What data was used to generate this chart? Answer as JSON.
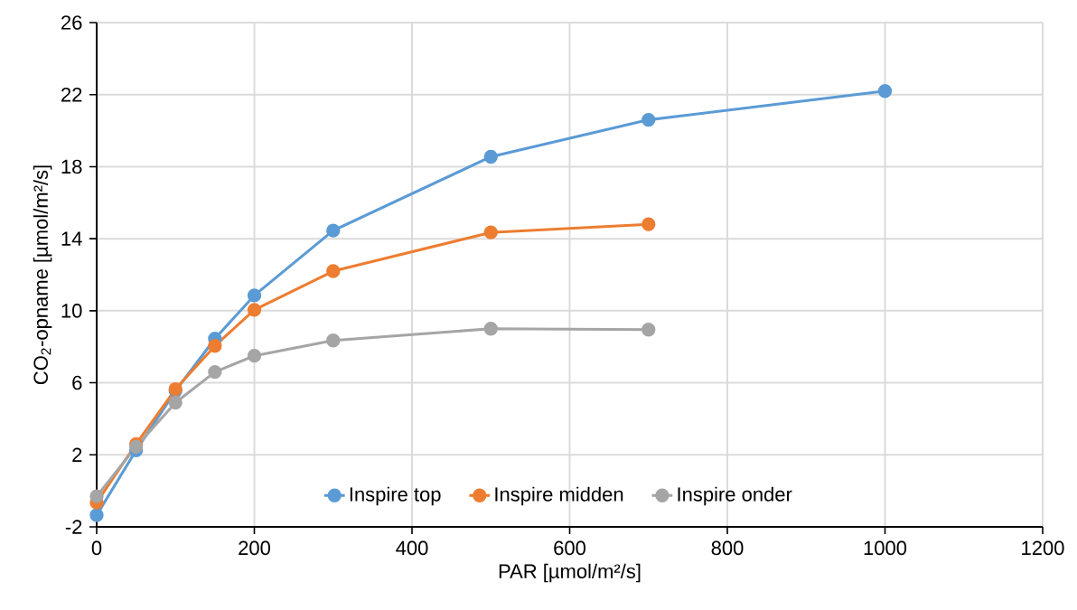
{
  "chart_data": {
    "type": "line",
    "xlabel": "PAR [µmol/m²/s]",
    "ylabel": "CO$_{2}$-opname [µmol/m²/s]",
    "xlim": [
      0,
      1200
    ],
    "xticks": [
      0,
      200,
      400,
      600,
      800,
      1000,
      1200
    ],
    "ylim": [
      -2,
      26
    ],
    "yticks": [
      -2,
      2,
      6,
      10,
      14,
      18,
      22,
      26
    ],
    "grid": true,
    "legend": "bottom right",
    "marker": "circle",
    "line_style": "solid",
    "series": [
      {
        "name": "Inspire top",
        "color": "#5b9bd5",
        "x": [
          0,
          50,
          100,
          150,
          200,
          300,
          500,
          700,
          1000
        ],
        "values": [
          -1.35,
          2.25,
          5.55,
          8.45,
          10.85,
          14.45,
          18.55,
          20.6,
          22.2
        ]
      },
      {
        "name": "Inspire midden",
        "color": "#ed7d31",
        "x": [
          0,
          50,
          100,
          150,
          200,
          300,
          500,
          700
        ],
        "values": [
          -0.65,
          2.6,
          5.65,
          8.05,
          10.05,
          12.2,
          14.35,
          14.8
        ]
      },
      {
        "name": "Inspire onder",
        "color": "#a5a5a5",
        "x": [
          0,
          50,
          100,
          150,
          200,
          300,
          500,
          700
        ],
        "values": [
          -0.3,
          2.45,
          4.9,
          6.6,
          7.5,
          8.35,
          9.0,
          8.95
        ]
      }
    ]
  }
}
